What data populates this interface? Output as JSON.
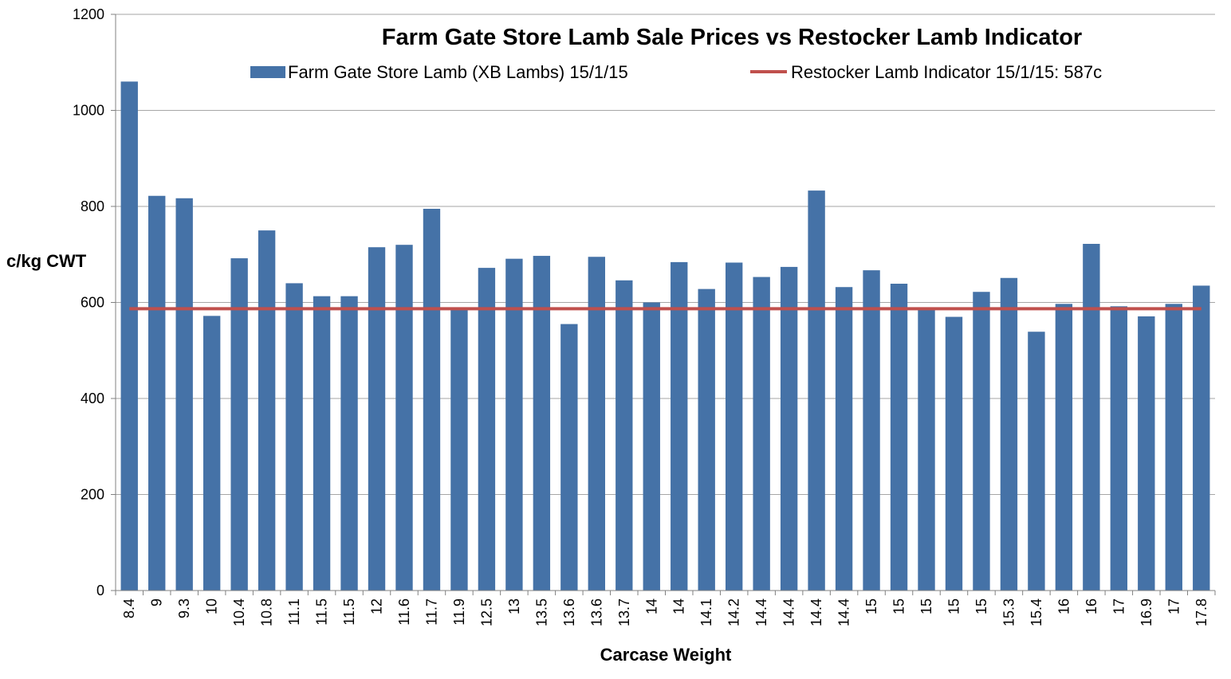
{
  "chart_data": {
    "type": "bar",
    "title": "Farm Gate Store Lamb Sale Prices vs Restocker Lamb Indicator",
    "xlabel": "Carcase Weight",
    "ylabel": "c/kg CWT",
    "ylim": [
      0,
      1200
    ],
    "yticks": [
      0,
      200,
      400,
      600,
      800,
      1000,
      1200
    ],
    "grid": true,
    "legend_position": "top",
    "categories": [
      "8.4",
      "9",
      "9.3",
      "10",
      "10.4",
      "10.8",
      "11.1",
      "11.5",
      "11.5",
      "12",
      "11.6",
      "11.7",
      "11.9",
      "12.5",
      "13",
      "13.5",
      "13.6",
      "13.6",
      "13.7",
      "14",
      "14",
      "14.1",
      "14.2",
      "14.4",
      "14.4",
      "14.4",
      "14.4",
      "15",
      "15",
      "15",
      "15",
      "15",
      "15.3",
      "15.4",
      "16",
      "16",
      "17",
      "16.9",
      "17",
      "17.8"
    ],
    "series": [
      {
        "name": "Farm Gate Store Lamb (XB Lambs) 15/1/15",
        "type": "bar",
        "color": "#4572A7",
        "values": [
          1060,
          822,
          817,
          572,
          692,
          750,
          640,
          613,
          613,
          715,
          720,
          795,
          590,
          672,
          691,
          697,
          555,
          695,
          646,
          600,
          684,
          628,
          683,
          653,
          674,
          833,
          632,
          667,
          639,
          588,
          570,
          622,
          651,
          539,
          597,
          722,
          592,
          571,
          597,
          635
        ]
      },
      {
        "name": "Restocker Lamb Indicator 15/1/15: 587c",
        "type": "line",
        "color": "#C0504D",
        "value": 587
      }
    ]
  }
}
